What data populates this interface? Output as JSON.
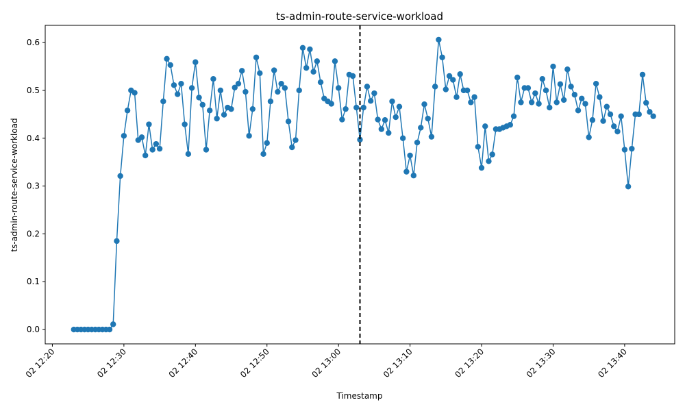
{
  "chart_data": {
    "type": "line",
    "title": "ts-admin-route-service-workload",
    "xlabel": "Timestamp",
    "ylabel": "ts-admin-route-service-workload",
    "x_start": "02 12:23",
    "x_step_minutes": 0.5,
    "xlim": [
      "02 12:19",
      "02 13:47"
    ],
    "ylim": [
      -0.03,
      0.636
    ],
    "grid": false,
    "marker": "circle",
    "series_color": "#1f77b4",
    "vline": {
      "x": "02 13:03",
      "style": "dashed",
      "color": "#000000"
    },
    "x_ticks": [
      "02 12:20",
      "02 12:30",
      "02 12:40",
      "02 12:50",
      "02 13:00",
      "02 13:10",
      "02 13:20",
      "02 13:30",
      "02 13:40"
    ],
    "y_ticks": [
      "0.0",
      "0.1",
      "0.2",
      "0.3",
      "0.4",
      "0.5",
      "0.6"
    ],
    "y_tick_values": [
      0.0,
      0.1,
      0.2,
      0.3,
      0.4,
      0.5,
      0.6
    ],
    "series": [
      {
        "values": [
          0.0,
          0.0,
          0.0,
          0.0,
          0.0,
          0.0,
          0.0,
          0.0,
          0.0,
          0.0,
          0.0,
          0.011,
          0.185,
          0.321,
          0.405,
          0.458,
          0.5,
          0.495,
          0.396,
          0.402,
          0.364,
          0.429,
          0.376,
          0.388,
          0.378,
          0.477,
          0.566,
          0.553,
          0.511,
          0.492,
          0.514,
          0.429,
          0.367,
          0.505,
          0.559,
          0.485,
          0.47,
          0.376,
          0.458,
          0.524,
          0.441,
          0.5,
          0.449,
          0.464,
          0.461,
          0.506,
          0.514,
          0.541,
          0.497,
          0.405,
          0.461,
          0.569,
          0.536,
          0.367,
          0.39,
          0.477,
          0.542,
          0.497,
          0.514,
          0.505,
          0.435,
          0.381,
          0.396,
          0.5,
          0.589,
          0.547,
          0.586,
          0.539,
          0.561,
          0.517,
          0.483,
          0.477,
          0.472,
          0.561,
          0.505,
          0.439,
          0.461,
          0.533,
          0.53,
          0.464,
          0.397,
          0.464,
          0.508,
          0.478,
          0.494,
          0.439,
          0.419,
          0.438,
          0.411,
          0.477,
          0.444,
          0.466,
          0.4,
          0.33,
          0.364,
          0.322,
          0.391,
          0.422,
          0.471,
          0.441,
          0.403,
          0.508,
          0.606,
          0.569,
          0.502,
          0.53,
          0.522,
          0.486,
          0.534,
          0.5,
          0.5,
          0.475,
          0.486,
          0.382,
          0.338,
          0.425,
          0.352,
          0.366,
          0.419,
          0.419,
          0.422,
          0.425,
          0.428,
          0.446,
          0.527,
          0.475,
          0.505,
          0.505,
          0.475,
          0.494,
          0.472,
          0.524,
          0.5,
          0.464,
          0.55,
          0.475,
          0.513,
          0.48,
          0.544,
          0.508,
          0.491,
          0.458,
          0.483,
          0.472,
          0.402,
          0.438,
          0.514,
          0.486,
          0.436,
          0.466,
          0.45,
          0.425,
          0.414,
          0.446,
          0.376,
          0.299,
          0.378,
          0.45,
          0.45,
          0.533,
          0.474,
          0.455,
          0.446
        ]
      }
    ]
  }
}
